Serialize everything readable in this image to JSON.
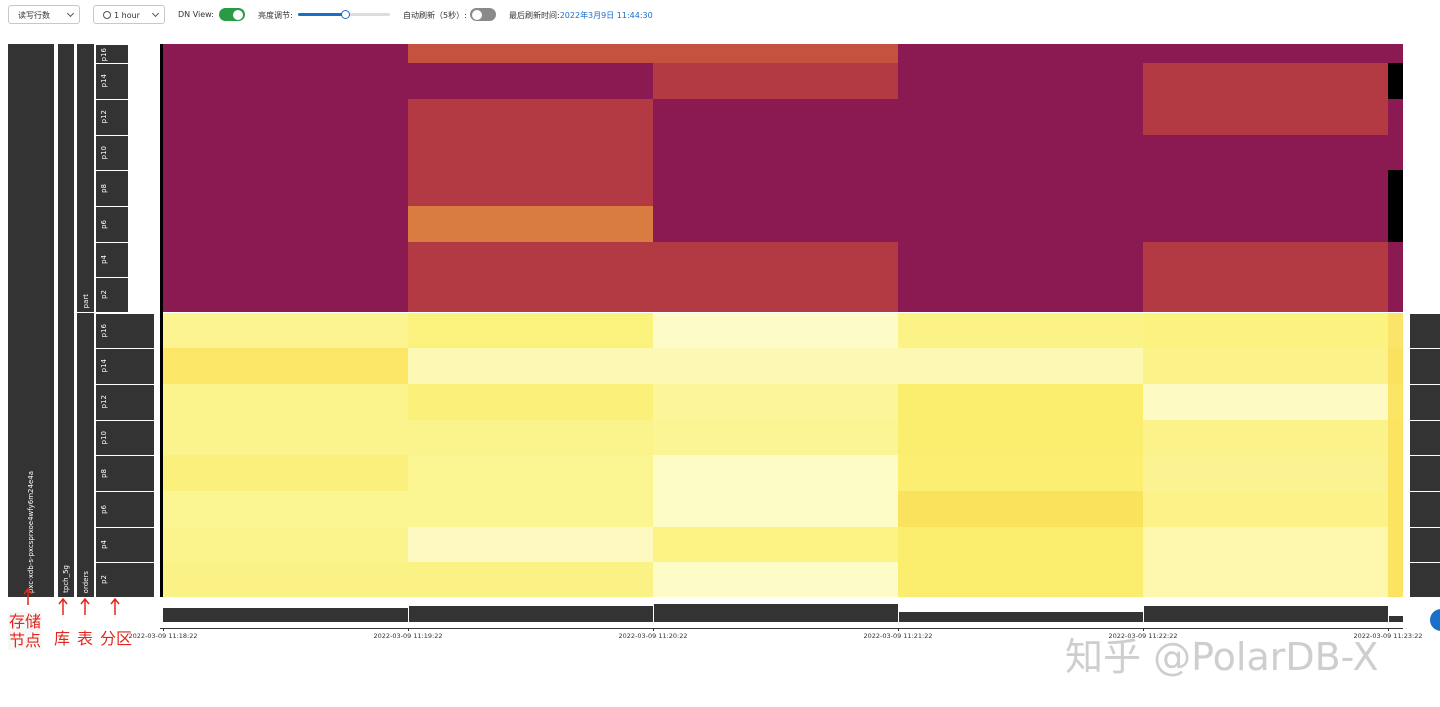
{
  "toolbar": {
    "metric_select": "读写行数",
    "time_select": "1 hour",
    "dn_view_label": "DN View:",
    "dn_view_on": true,
    "brightness_label": "亮度调节:",
    "auto_refresh_label": "自动刷新（5秒）:",
    "auto_refresh_on": false,
    "last_refresh_label": "最后刷新时间:",
    "last_refresh_time": "2022年3月9日 11:44:30"
  },
  "tree": {
    "node": "pxc-xdb-s-pxcsprxoe4wfy6m24e4a",
    "database": "tpch_5g",
    "tables": [
      {
        "name": "part",
        "partitions": [
          "p16",
          "p14",
          "p12",
          "p10",
          "p8",
          "p6",
          "p4",
          "p2"
        ],
        "cells": [
          [
            "#8b1a52",
            "#c5523f",
            "#c5523f",
            "#8b1a52",
            "#8b1a52",
            "#8b1a52"
          ],
          [
            "#8b1a52",
            "#8b1a52",
            "#b33a43",
            "#8b1a52",
            "#b33a43",
            "#000000"
          ],
          [
            "#8b1a52",
            "#b33a43",
            "#8b1a52",
            "#8b1a52",
            "#b33a43",
            "#8b1a52"
          ],
          [
            "#8b1a52",
            "#b33a43",
            "#8b1a52",
            "#8b1a52",
            "#8b1a52",
            "#8b1a52"
          ],
          [
            "#8b1a52",
            "#b33a43",
            "#8b1a52",
            "#8b1a52",
            "#8b1a52",
            "#000000"
          ],
          [
            "#8b1a52",
            "#d97c42",
            "#8b1a52",
            "#8b1a52",
            "#8b1a52",
            "#000000"
          ],
          [
            "#8b1a52",
            "#b33a43",
            "#b33a43",
            "#8b1a52",
            "#b33a43",
            "#8b1a52"
          ],
          [
            "#8b1a52",
            "#b33a43",
            "#b33a43",
            "#8b1a52",
            "#b33a43",
            "#8b1a52"
          ]
        ]
      },
      {
        "name": "orders",
        "partitions": [
          "p16",
          "p14",
          "p12",
          "p10",
          "p8",
          "p6",
          "p4",
          "p2"
        ],
        "cells": [
          [
            "#fbf491",
            "#fbf27e",
            "#fdfbc8",
            "#fbf385",
            "#fbf280",
            "#fbe46a"
          ],
          [
            "#fbe765",
            "#fdf9b4",
            "#fdf9b4",
            "#fdf9b4",
            "#fbf28a",
            "#fbe160"
          ],
          [
            "#fbf48c",
            "#fbf07a",
            "#fcf59a",
            "#fbee6e",
            "#fdfac4",
            "#fbe566"
          ],
          [
            "#fbf38c",
            "#fbf48c",
            "#fbf594",
            "#fbee6e",
            "#fbf28a",
            "#fbe462"
          ],
          [
            "#fbf07c",
            "#fbf592",
            "#fdfbc6",
            "#fbee70",
            "#fbf391",
            "#fbe462"
          ],
          [
            "#fbf592",
            "#fbf592",
            "#fdfbc6",
            "#f9e35c",
            "#fbf388",
            "#fbe462"
          ],
          [
            "#fbf48c",
            "#fdf9c0",
            "#fbf384",
            "#fbee6e",
            "#fcf7ac",
            "#fbe462"
          ],
          [
            "#fbf286",
            "#fbf286",
            "#fdfbc8",
            "#fbee6e",
            "#fcf7ac",
            "#fbe462"
          ]
        ]
      }
    ]
  },
  "time_axis": [
    "2022-03-09 11:18:22",
    "2022-03-09 11:19:22",
    "2022-03-09 11:20:22",
    "2022-03-09 11:21:22",
    "2022-03-09 11:22:22",
    "2022-03-09 11:23:22"
  ],
  "annotations": {
    "node": "存储节点",
    "database": "库",
    "table": "表",
    "partition": "分区"
  },
  "watermark": "知乎 @PolarDB-X"
}
